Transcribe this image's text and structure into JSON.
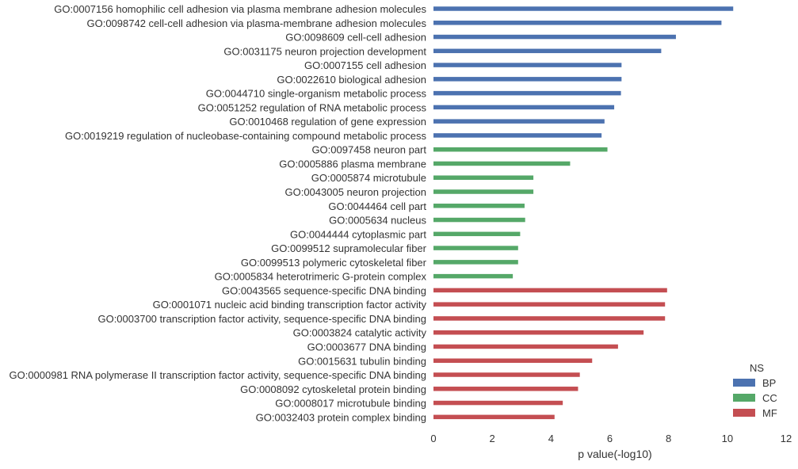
{
  "chart_data": {
    "type": "bar",
    "orientation": "horizontal",
    "xlabel": "p value(-log10)",
    "xlim": [
      0,
      12
    ],
    "xticks": [
      0,
      2,
      4,
      6,
      8,
      10,
      12
    ],
    "grid": false,
    "legend": {
      "title": "NS",
      "placement": "bottom-right",
      "entries": [
        {
          "name": "BP",
          "color": "#4c72b0"
        },
        {
          "name": "CC",
          "color": "#55a868"
        },
        {
          "name": "MF",
          "color": "#c44e52"
        }
      ]
    },
    "categories": [
      "GO:0007156 homophilic cell adhesion via plasma membrane adhesion molecules",
      "GO:0098742 cell-cell adhesion via plasma-membrane adhesion molecules",
      "GO:0098609 cell-cell adhesion",
      "GO:0031175 neuron projection development",
      "GO:0007155 cell adhesion",
      "GO:0022610 biological adhesion",
      "GO:0044710 single-organism metabolic process",
      "GO:0051252 regulation of RNA metabolic process",
      "GO:0010468 regulation of gene expression",
      "GO:0019219 regulation of nucleobase-containing compound metabolic process",
      "GO:0097458 neuron part",
      "GO:0005886 plasma membrane",
      "GO:0005874 microtubule",
      "GO:0043005 neuron projection",
      "GO:0044464 cell part",
      "GO:0005634 nucleus",
      "GO:0044444 cytoplasmic part",
      "GO:0099512 supramolecular fiber",
      "GO:0099513 polymeric cytoskeletal fiber",
      "GO:0005834 heterotrimeric G-protein complex",
      "GO:0043565 sequence-specific DNA binding",
      "GO:0001071 nucleic acid binding transcription factor activity",
      "GO:0003700 transcription factor activity, sequence-specific DNA binding",
      "GO:0003824 catalytic activity",
      "GO:0003677 DNA binding",
      "GO:0015631 tubulin binding",
      "GO:0000981 RNA polymerase II transcription factor activity, sequence-specific DNA binding",
      "GO:0008092 cytoskeletal protein binding",
      "GO:0008017 microtubule binding",
      "GO:0032403 protein complex binding"
    ],
    "values": [
      10.2,
      9.8,
      8.25,
      7.75,
      6.4,
      6.4,
      6.38,
      6.15,
      5.82,
      5.72,
      5.92,
      4.65,
      3.4,
      3.4,
      3.1,
      3.12,
      2.95,
      2.88,
      2.88,
      2.7,
      7.95,
      7.88,
      7.88,
      7.15,
      6.28,
      5.4,
      4.98,
      4.92,
      4.4,
      4.12
    ],
    "groups": [
      "BP",
      "BP",
      "BP",
      "BP",
      "BP",
      "BP",
      "BP",
      "BP",
      "BP",
      "BP",
      "CC",
      "CC",
      "CC",
      "CC",
      "CC",
      "CC",
      "CC",
      "CC",
      "CC",
      "CC",
      "MF",
      "MF",
      "MF",
      "MF",
      "MF",
      "MF",
      "MF",
      "MF",
      "MF",
      "MF"
    ]
  }
}
